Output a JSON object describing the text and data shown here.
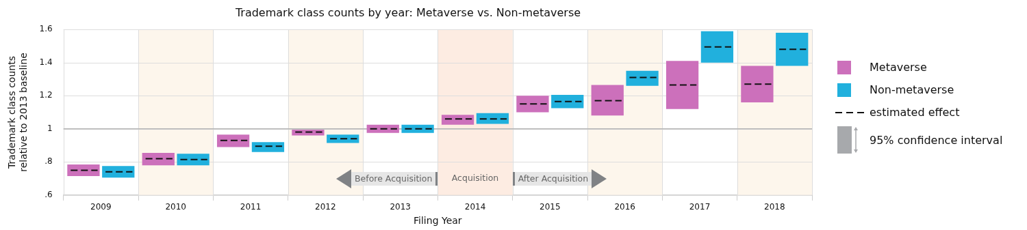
{
  "chart_data": {
    "type": "box",
    "title": "Trademark class counts by year: Metaverse vs. Non-metaverse",
    "xlabel": "Filing Year",
    "ylabel": "Trademark class counts\nrelative to 2013 baseline",
    "categories": [
      "2009",
      "2010",
      "2011",
      "2012",
      "2013",
      "2014",
      "2015",
      "2016",
      "2017",
      "2018"
    ],
    "series": [
      {
        "name": "Metaverse",
        "color": "#cc70bb",
        "boxes": [
          {
            "low": 0.715,
            "q1": 0.715,
            "median": 0.75,
            "q3": 0.785,
            "high": 0.785
          },
          {
            "low": 0.78,
            "q1": 0.78,
            "median": 0.82,
            "q3": 0.855,
            "high": 0.855
          },
          {
            "low": 0.89,
            "q1": 0.89,
            "median": 0.93,
            "q3": 0.965,
            "high": 0.965
          },
          {
            "low": 0.96,
            "q1": 0.96,
            "median": 0.98,
            "q3": 0.995,
            "high": 0.995
          },
          {
            "low": 0.975,
            "q1": 0.975,
            "median": 1.0,
            "q3": 1.025,
            "high": 1.025
          },
          {
            "low": 1.025,
            "q1": 1.025,
            "median": 1.06,
            "q3": 1.085,
            "high": 1.085
          },
          {
            "low": 1.1,
            "q1": 1.1,
            "median": 1.15,
            "q3": 1.2,
            "high": 1.2
          },
          {
            "low": 1.08,
            "q1": 1.08,
            "median": 1.17,
            "q3": 1.265,
            "high": 1.265
          },
          {
            "low": 1.12,
            "q1": 1.12,
            "median": 1.265,
            "q3": 1.41,
            "high": 1.41
          },
          {
            "low": 1.16,
            "q1": 1.16,
            "median": 1.27,
            "q3": 1.38,
            "high": 1.38
          }
        ]
      },
      {
        "name": "Non-metaverse",
        "color": "#21b0dd",
        "boxes": [
          {
            "low": 0.705,
            "q1": 0.705,
            "median": 0.74,
            "q3": 0.775,
            "high": 0.775
          },
          {
            "low": 0.78,
            "q1": 0.78,
            "median": 0.815,
            "q3": 0.85,
            "high": 0.85
          },
          {
            "low": 0.86,
            "q1": 0.86,
            "median": 0.895,
            "q3": 0.92,
            "high": 0.92
          },
          {
            "low": 0.915,
            "q1": 0.915,
            "median": 0.94,
            "q3": 0.965,
            "high": 0.965
          },
          {
            "low": 0.975,
            "q1": 0.975,
            "median": 1.0,
            "q3": 1.025,
            "high": 1.025
          },
          {
            "low": 1.03,
            "q1": 1.03,
            "median": 1.06,
            "q3": 1.095,
            "high": 1.095
          },
          {
            "low": 1.125,
            "q1": 1.125,
            "median": 1.165,
            "q3": 1.205,
            "high": 1.205
          },
          {
            "low": 1.26,
            "q1": 1.26,
            "median": 1.31,
            "q3": 1.35,
            "high": 1.35
          },
          {
            "low": 1.4,
            "q1": 1.4,
            "median": 1.495,
            "q3": 1.59,
            "high": 1.59
          },
          {
            "low": 1.38,
            "q1": 1.38,
            "median": 1.48,
            "q3": 1.58,
            "high": 1.58
          }
        ]
      }
    ],
    "ylim": [
      0.6,
      1.6
    ],
    "yticks": [
      {
        "value": 0.6,
        "label": ".6"
      },
      {
        "value": 0.8,
        "label": ".8"
      },
      1,
      1.2,
      1.4,
      1.6
    ],
    "grid": true,
    "legend": "right",
    "ref_lines": [
      {
        "axis": "y",
        "value": 1,
        "color": "#b4b4b4"
      }
    ],
    "bands": [
      {
        "axis": "x",
        "from": "2010",
        "to": "2010",
        "color": "#fdf6ec"
      },
      {
        "axis": "x",
        "from": "2012",
        "to": "2012",
        "color": "#fdf6ec"
      },
      {
        "axis": "x",
        "from": "2014",
        "to": "2014",
        "color": "#fdece2",
        "label": "Acquisition"
      },
      {
        "axis": "x",
        "from": "2016",
        "to": "2016",
        "color": "#fdf6ec"
      },
      {
        "axis": "x",
        "from": "2018",
        "to": "2018",
        "color": "#fdf6ec"
      }
    ],
    "annotations": [
      "Before Acquisition",
      "After Acquisition",
      "estimated effect",
      "95% confidence interval"
    ]
  }
}
